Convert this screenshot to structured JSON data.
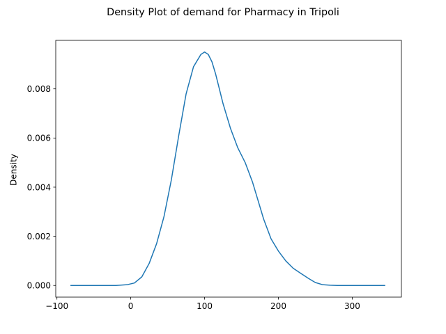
{
  "chart_data": {
    "type": "line",
    "title": "Density Plot of demand for Pharmacy in Tripoli",
    "xlabel": "",
    "ylabel": "Density",
    "xlim": [
      -101.6,
      366.6
    ],
    "ylim": [
      -0.000475,
      0.009974
    ],
    "grid": false,
    "legend": "none",
    "xticks": [
      {
        "value": -100,
        "label": "−100"
      },
      {
        "value": 0,
        "label": "0"
      },
      {
        "value": 100,
        "label": "100"
      },
      {
        "value": 200,
        "label": "200"
      },
      {
        "value": 300,
        "label": "300"
      }
    ],
    "yticks": [
      {
        "value": 0.0,
        "label": "0.000"
      },
      {
        "value": 0.002,
        "label": "0.002"
      },
      {
        "value": 0.004,
        "label": "0.004"
      },
      {
        "value": 0.006,
        "label": "0.006"
      },
      {
        "value": 0.008,
        "label": "0.008"
      }
    ],
    "series": [
      {
        "color": "#1f77b4",
        "x": [
          -81,
          -50,
          -20,
          -5,
          5,
          15,
          25,
          35,
          45,
          55,
          65,
          75,
          85,
          95,
          100,
          105,
          110,
          115,
          120,
          125,
          130,
          135,
          140,
          145,
          150,
          155,
          160,
          165,
          170,
          175,
          180,
          185,
          190,
          195,
          200,
          210,
          220,
          230,
          240,
          250,
          260,
          270,
          280,
          290,
          300,
          320,
          344
        ],
        "y": [
          0.0,
          0.0,
          0.0,
          3e-05,
          0.0001,
          0.00035,
          0.0009,
          0.0017,
          0.0028,
          0.0043,
          0.0061,
          0.0078,
          0.0089,
          0.0094,
          0.0095,
          0.0094,
          0.0091,
          0.0086,
          0.008,
          0.0074,
          0.0069,
          0.0064,
          0.006,
          0.0056,
          0.0053,
          0.005,
          0.0046,
          0.0042,
          0.0037,
          0.0032,
          0.0027,
          0.0023,
          0.0019,
          0.00165,
          0.0014,
          0.001,
          0.0007,
          0.0005,
          0.0003,
          0.00012,
          3e-05,
          1e-05,
          0.0,
          0.0,
          0.0,
          0.0,
          0.0
        ]
      }
    ]
  }
}
